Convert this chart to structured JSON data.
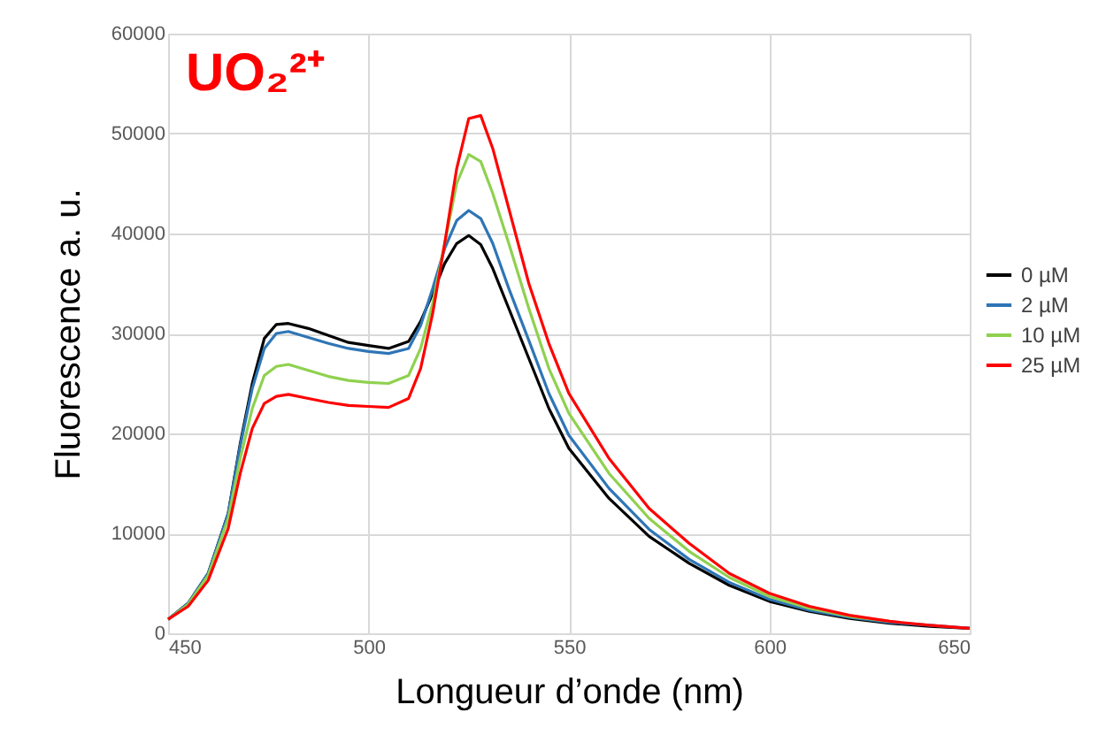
{
  "chart_data": {
    "type": "line",
    "xlabel": "Longueur d’onde (nm)",
    "ylabel": "Fluorescence a. u.",
    "annotations": [
      "UO₂²⁺"
    ],
    "x": [
      450,
      455,
      460,
      465,
      468,
      471,
      474,
      477,
      480,
      485,
      490,
      495,
      500,
      505,
      510,
      513,
      516,
      519,
      522,
      525,
      528,
      531,
      535,
      540,
      545,
      550,
      560,
      570,
      580,
      590,
      600,
      610,
      620,
      630,
      640,
      650
    ],
    "series": [
      {
        "name": "0 µM",
        "color": "#000000",
        "values": [
          1400,
          3000,
          6000,
          12000,
          19000,
          25000,
          29500,
          30900,
          31000,
          30500,
          29800,
          29100,
          28800,
          28500,
          29200,
          31200,
          34000,
          37000,
          39000,
          39800,
          38900,
          36500,
          32500,
          27500,
          22500,
          18500,
          13500,
          9700,
          7000,
          4800,
          3200,
          2200,
          1500,
          1000,
          700,
          500
        ]
      },
      {
        "name": "2 µM",
        "color": "#2e75b6",
        "values": [
          1400,
          3000,
          6000,
          12000,
          18800,
          24500,
          28500,
          30000,
          30200,
          29600,
          29000,
          28500,
          28200,
          28000,
          28500,
          30800,
          34500,
          38500,
          41300,
          42300,
          41500,
          39000,
          34500,
          29300,
          24000,
          19800,
          14500,
          10400,
          7400,
          5100,
          3400,
          2300,
          1600,
          1100,
          800,
          500
        ]
      },
      {
        "name": "10 µM",
        "color": "#8fd14f",
        "values": [
          1400,
          2900,
          5800,
          11500,
          17500,
          22500,
          25800,
          26700,
          26900,
          26300,
          25700,
          25300,
          25100,
          25000,
          25800,
          28500,
          33000,
          39000,
          45000,
          47900,
          47200,
          44000,
          39000,
          32500,
          26500,
          22000,
          16000,
          11500,
          8200,
          5600,
          3700,
          2500,
          1700,
          1200,
          null,
          null
        ]
      },
      {
        "name": "25 µM",
        "color": "#ff0000",
        "values": [
          1400,
          2700,
          5300,
          10500,
          16000,
          20500,
          23000,
          23700,
          23900,
          23500,
          23100,
          22800,
          22700,
          22600,
          23500,
          26500,
          32000,
          39000,
          46500,
          51500,
          51800,
          48500,
          42500,
          35000,
          29000,
          24000,
          17500,
          12500,
          9000,
          6000,
          4000,
          2700,
          1800,
          1200,
          800,
          500
        ]
      }
    ],
    "xlim": [
      450,
      650
    ],
    "xticks": [
      450,
      500,
      550,
      600,
      650
    ],
    "ylim": [
      0,
      60000
    ],
    "yticks": [
      0,
      10000,
      20000,
      30000,
      40000,
      50000,
      60000
    ],
    "grid": true,
    "legend": "right",
    "marker": "none",
    "line_style": "solid"
  }
}
